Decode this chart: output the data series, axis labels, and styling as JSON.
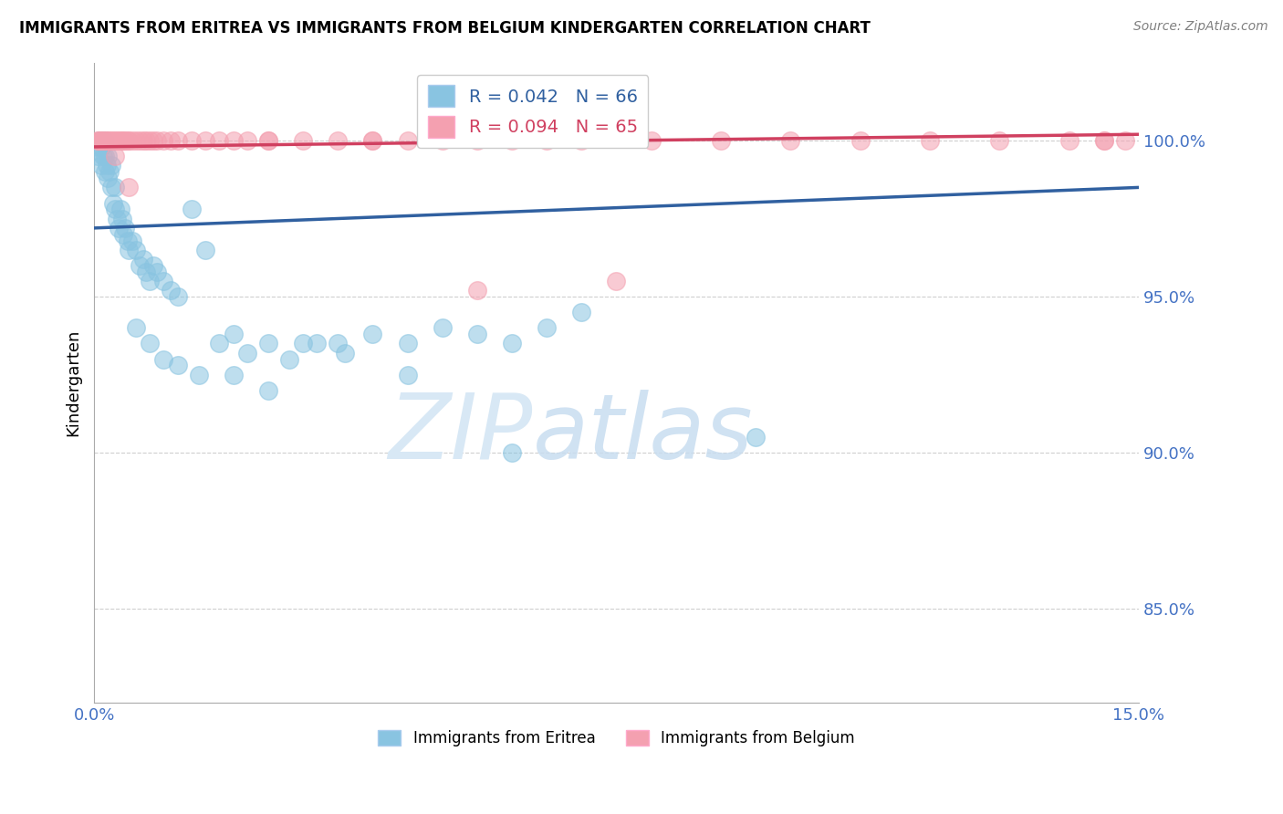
{
  "title": "IMMIGRANTS FROM ERITREA VS IMMIGRANTS FROM BELGIUM KINDERGARTEN CORRELATION CHART",
  "source": "Source: ZipAtlas.com",
  "ylabel": "Kindergarten",
  "x_min": 0.0,
  "x_max": 15.0,
  "y_min": 82.0,
  "y_max": 102.5,
  "blue_R": 0.042,
  "blue_N": 66,
  "pink_R": 0.094,
  "pink_N": 65,
  "blue_color": "#89c4e1",
  "pink_color": "#f4a0b0",
  "blue_line_color": "#3060a0",
  "pink_line_color": "#d04060",
  "grid_color": "#bbbbbb",
  "axis_label_color": "#4472c4",
  "watermark_color": "#d8e8f5",
  "legend_label_blue": "Immigrants from Eritrea",
  "legend_label_pink": "Immigrants from Belgium",
  "blue_points_x": [
    0.05,
    0.07,
    0.08,
    0.1,
    0.1,
    0.12,
    0.13,
    0.14,
    0.15,
    0.15,
    0.18,
    0.2,
    0.2,
    0.22,
    0.25,
    0.25,
    0.28,
    0.3,
    0.3,
    0.32,
    0.35,
    0.38,
    0.4,
    0.42,
    0.45,
    0.48,
    0.5,
    0.55,
    0.6,
    0.65,
    0.7,
    0.75,
    0.8,
    0.85,
    0.9,
    1.0,
    1.1,
    1.2,
    1.4,
    1.6,
    1.8,
    2.0,
    2.2,
    2.5,
    2.8,
    3.2,
    3.6,
    4.0,
    4.5,
    5.0,
    5.5,
    6.0,
    6.5,
    7.0,
    0.6,
    0.8,
    1.0,
    1.2,
    1.5,
    2.0,
    2.5,
    3.0,
    3.5,
    4.5,
    6.0,
    9.5
  ],
  "blue_points_y": [
    99.5,
    99.8,
    100.0,
    99.2,
    99.8,
    100.0,
    99.5,
    100.0,
    99.0,
    99.5,
    99.2,
    98.8,
    99.5,
    99.0,
    98.5,
    99.2,
    98.0,
    97.8,
    98.5,
    97.5,
    97.2,
    97.8,
    97.5,
    97.0,
    97.2,
    96.8,
    96.5,
    96.8,
    96.5,
    96.0,
    96.2,
    95.8,
    95.5,
    96.0,
    95.8,
    95.5,
    95.2,
    95.0,
    97.8,
    96.5,
    93.5,
    93.8,
    93.2,
    93.5,
    93.0,
    93.5,
    93.2,
    93.8,
    93.5,
    94.0,
    93.8,
    93.5,
    94.0,
    94.5,
    94.0,
    93.5,
    93.0,
    92.8,
    92.5,
    92.5,
    92.0,
    93.5,
    93.5,
    92.5,
    90.0,
    90.5
  ],
  "pink_points_x": [
    0.05,
    0.07,
    0.08,
    0.1,
    0.1,
    0.12,
    0.13,
    0.15,
    0.15,
    0.18,
    0.2,
    0.22,
    0.25,
    0.28,
    0.3,
    0.32,
    0.35,
    0.38,
    0.4,
    0.42,
    0.45,
    0.48,
    0.5,
    0.55,
    0.6,
    0.65,
    0.7,
    0.75,
    0.8,
    0.85,
    0.9,
    1.0,
    1.1,
    1.2,
    1.4,
    1.6,
    1.8,
    2.0,
    2.2,
    2.5,
    3.0,
    3.5,
    4.0,
    4.5,
    5.0,
    5.5,
    6.0,
    6.5,
    7.0,
    8.0,
    9.0,
    10.0,
    11.0,
    12.0,
    13.0,
    14.0,
    14.5,
    14.8,
    2.5,
    4.0,
    0.3,
    0.5,
    5.5,
    7.5,
    14.5
  ],
  "pink_points_y": [
    100.0,
    100.0,
    100.0,
    100.0,
    100.0,
    100.0,
    100.0,
    100.0,
    100.0,
    100.0,
    100.0,
    100.0,
    100.0,
    100.0,
    100.0,
    100.0,
    100.0,
    100.0,
    100.0,
    100.0,
    100.0,
    100.0,
    100.0,
    100.0,
    100.0,
    100.0,
    100.0,
    100.0,
    100.0,
    100.0,
    100.0,
    100.0,
    100.0,
    100.0,
    100.0,
    100.0,
    100.0,
    100.0,
    100.0,
    100.0,
    100.0,
    100.0,
    100.0,
    100.0,
    100.0,
    100.0,
    100.0,
    100.0,
    100.0,
    100.0,
    100.0,
    100.0,
    100.0,
    100.0,
    100.0,
    100.0,
    100.0,
    100.0,
    100.0,
    100.0,
    99.5,
    98.5,
    95.2,
    95.5,
    100.0
  ],
  "blue_trend_x": [
    0.0,
    15.0
  ],
  "blue_trend_y": [
    97.2,
    98.5
  ],
  "pink_trend_x": [
    0.0,
    15.0
  ],
  "pink_trend_y": [
    99.8,
    100.2
  ]
}
